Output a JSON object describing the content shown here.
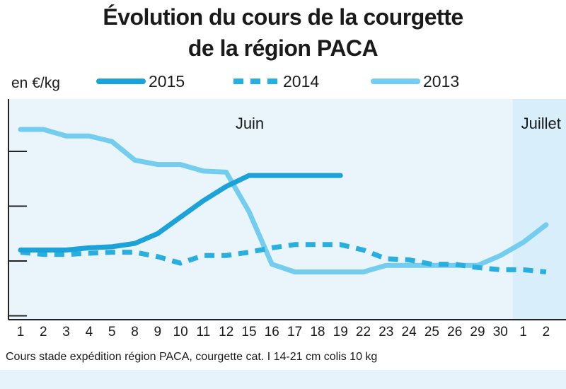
{
  "chart_data": {
    "type": "line",
    "title_line1": "Évolution du cours de la courgette",
    "title_line2": "de la région PACA",
    "ylabel": "en €/kg",
    "note": "Cours stade expédition région PACA, courgette cat. I 14-21 cm colis 10 kg",
    "x": [
      "1",
      "2",
      "3",
      "4",
      "5",
      "8",
      "9",
      "10",
      "11",
      "12",
      "15",
      "16",
      "17",
      "18",
      "19",
      "22",
      "23",
      "24",
      "25",
      "26",
      "29",
      "30",
      "1",
      "2"
    ],
    "month_labels": [
      "Juin",
      "Juillet"
    ],
    "legend_position": "top",
    "grid": false,
    "colors": {
      "series2015": "#1aa2d9",
      "series2014": "#29aee0",
      "series2013": "#74cdee",
      "band_june": "#e9f5fb",
      "band_july": "#d8eefa"
    },
    "series": [
      {
        "name": "2015",
        "style": "solid",
        "values": [
          1.1,
          1.1,
          1.1,
          1.12,
          1.13,
          1.16,
          1.25,
          1.4,
          1.55,
          1.68,
          1.78,
          1.78,
          1.78,
          1.78,
          1.78,
          null,
          null,
          null,
          null,
          null,
          null,
          null,
          null,
          null
        ]
      },
      {
        "name": "2014",
        "style": "dashed",
        "values": [
          1.08,
          1.06,
          1.06,
          1.07,
          1.08,
          1.08,
          1.04,
          0.98,
          1.05,
          1.05,
          1.08,
          1.12,
          1.15,
          1.15,
          1.15,
          1.1,
          1.02,
          1.01,
          0.97,
          0.97,
          0.94,
          0.92,
          0.92,
          0.9
        ]
      },
      {
        "name": "2013",
        "style": "solid",
        "values": [
          2.2,
          2.2,
          2.14,
          2.14,
          2.09,
          1.92,
          1.88,
          1.88,
          1.82,
          1.81,
          1.45,
          0.97,
          0.9,
          0.9,
          0.9,
          0.9,
          0.96,
          0.96,
          0.96,
          0.96,
          0.96,
          1.05,
          1.17,
          1.33
        ]
      }
    ]
  }
}
